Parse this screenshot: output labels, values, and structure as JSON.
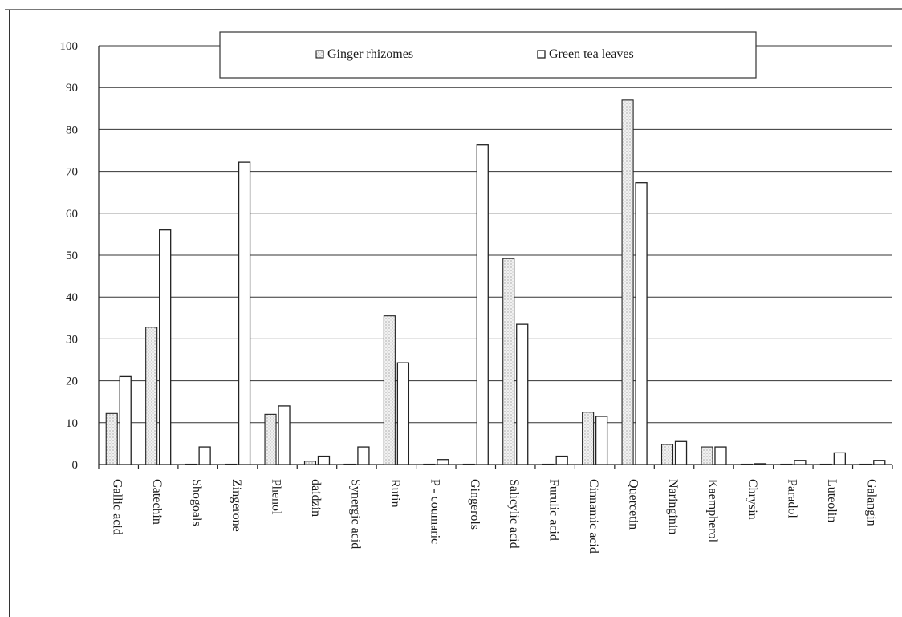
{
  "chart_data": {
    "type": "bar",
    "title": "",
    "xlabel": "",
    "ylabel": "",
    "ylim": [
      0,
      100
    ],
    "yticks": [
      0,
      10,
      20,
      30,
      40,
      50,
      60,
      70,
      80,
      90,
      100
    ],
    "grid": true,
    "legend_position": "top-center",
    "categories": [
      "Gallic acid",
      "Catechin",
      "Shogoals",
      "Zingerone",
      "Phenol",
      "daidzin",
      "Synergic acid",
      "Rutin",
      "P - coumaric",
      "Gingerols",
      "Salicylic acid",
      "Furulic acid",
      "Cinnamic acid",
      "Quercetin",
      "Naringinin",
      "Kaempherol",
      "Chrysin",
      "Paradol",
      "Luteolin",
      "Galangin"
    ],
    "series": [
      {
        "name": "Ginger rhizomes",
        "color": "#e6e6e6",
        "pattern": "dotted",
        "values": [
          12.2,
          32.8,
          0,
          0,
          12,
          0.8,
          0,
          35.5,
          0,
          0,
          49.2,
          0,
          12.5,
          87,
          4.8,
          4.2,
          0,
          0,
          0,
          0
        ]
      },
      {
        "name": "Green tea leaves",
        "color": "#ffffff",
        "pattern": "plain",
        "values": [
          21,
          56,
          4.2,
          72.2,
          14,
          2,
          4.2,
          24.3,
          1.2,
          76.3,
          33.5,
          2,
          11.5,
          67.3,
          5.5,
          4.2,
          0.2,
          1,
          2.8,
          1
        ]
      }
    ]
  }
}
